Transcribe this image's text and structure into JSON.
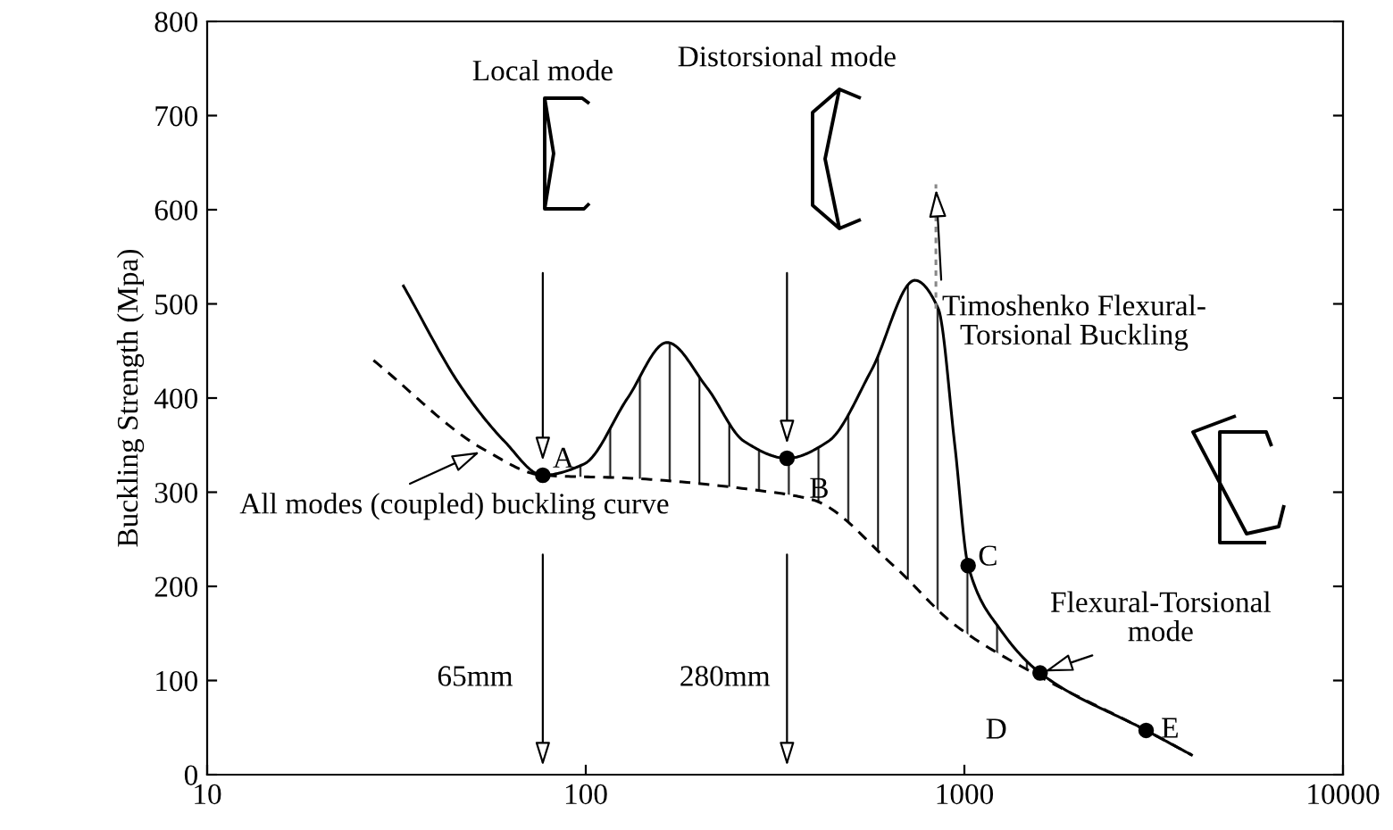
{
  "chart_data": {
    "type": "line",
    "ylabel": "Buckling Strength (Mpa)",
    "log": "x",
    "xlim": [
      10,
      10000
    ],
    "xticks": [
      10,
      100,
      1000,
      10000
    ],
    "ylim": [
      0,
      800
    ],
    "yticks": [
      0,
      100,
      200,
      300,
      400,
      500,
      600,
      700,
      800
    ],
    "grid": false,
    "series": [
      {
        "type": "line",
        "line_style": "solid",
        "color": "#000000",
        "x": [
          33,
          47,
          61,
          77,
          99,
          129,
          164,
          209,
          262,
          340,
          437,
          569,
          740,
          853,
          944,
          1023,
          1245,
          1585,
          3020,
          3980
        ],
        "values": [
          519,
          411,
          354,
          318,
          330,
          400,
          459,
          411,
          354,
          336,
          354,
          430,
          525,
          495,
          349,
          222,
          154,
          108,
          47,
          21
        ]
      },
      {
        "type": "line",
        "line_style": "dashed",
        "color": "#000000",
        "x": [
          27.5,
          54,
          77,
          129,
          297,
          397,
          650,
          944,
          1585,
          3020,
          3980
        ],
        "values": [
          440,
          345,
          318,
          315,
          301,
          292,
          222,
          159,
          104,
          47,
          21
        ]
      },
      {
        "type": "line",
        "line_style": "dotted",
        "color": "#888888",
        "x": [
          841,
          841
        ],
        "values": [
          495,
          627
        ]
      },
      {
        "type": "scatter",
        "marker": "circle",
        "color": "#000000",
        "x": [
          77,
          340,
          1023,
          1585,
          3020
        ],
        "values": [
          318,
          336,
          222,
          108,
          47
        ]
      }
    ],
    "annotations": [
      "Local mode",
      "Distorsional mode",
      {
        "text": "Timoshenko Flexural-\nTorsional Buckling",
        "x": 841,
        "y": 627
      },
      {
        "text": "All modes (coupled) buckling curve",
        "x": 54,
        "y": 345
      },
      "65mm",
      "280mm",
      {
        "text": "Flexural-Torsional\nmode",
        "x": 1585,
        "y": 108
      },
      {
        "text": "A",
        "x": 77,
        "y": 318
      },
      {
        "text": "B",
        "x": 340,
        "y": 336
      },
      {
        "text": "C",
        "x": 1023,
        "y": 222
      },
      {
        "text": "D",
        "x": 1585,
        "y": 104
      },
      {
        "text": "E",
        "x": 3020,
        "y": 47
      }
    ]
  }
}
